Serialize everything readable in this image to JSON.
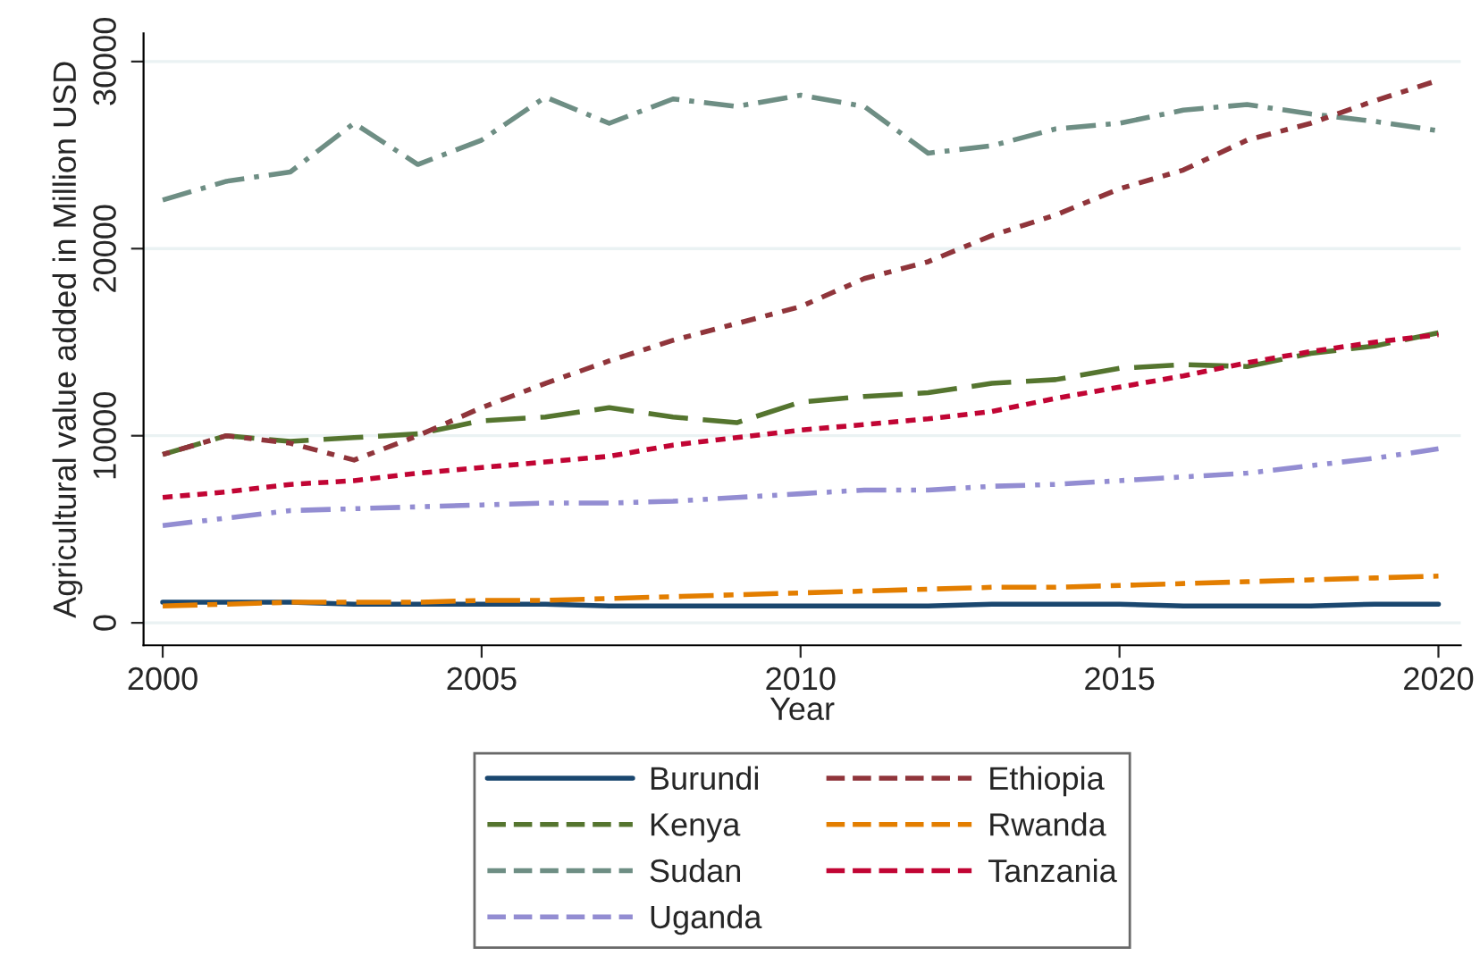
{
  "chart_data": {
    "type": "line",
    "xlabel": "Year",
    "ylabel": "Agricultural value added in Million USD",
    "x": [
      2000,
      2001,
      2002,
      2003,
      2004,
      2005,
      2006,
      2007,
      2008,
      2009,
      2010,
      2011,
      2012,
      2013,
      2014,
      2015,
      2016,
      2017,
      2018,
      2019,
      2020
    ],
    "xlim": [
      1999.7,
      2020.35
    ],
    "xticks": [
      2000,
      2005,
      2010,
      2015,
      2020
    ],
    "ylim": [
      -1200,
      31500
    ],
    "yticks": [
      0,
      10000,
      20000,
      30000
    ],
    "grid": "y",
    "legend": "bottom",
    "marker": "none",
    "series": [
      {
        "name": "Burundi",
        "color": "#1a476f",
        "line_style": "solid",
        "values": [
          1100,
          1100,
          1100,
          1000,
          1000,
          1000,
          1000,
          900,
          900,
          900,
          900,
          900,
          900,
          1000,
          1000,
          1000,
          900,
          900,
          900,
          1000,
          1000
        ]
      },
      {
        "name": "Kenya",
        "color": "#55752f",
        "line_style": "longdash",
        "values": [
          9000,
          10000,
          9700,
          9900,
          10100,
          10800,
          11000,
          11500,
          11000,
          10700,
          11800,
          12100,
          12300,
          12800,
          13000,
          13600,
          13800,
          13700,
          14400,
          14800,
          15500
        ]
      },
      {
        "name": "Sudan",
        "color": "#6e8e84",
        "line_style": "dashdot",
        "values": [
          22600,
          23600,
          24100,
          26700,
          24500,
          25800,
          28100,
          26700,
          28000,
          27600,
          28200,
          27600,
          25100,
          25500,
          26400,
          26700,
          27400,
          27700,
          27200,
          26800,
          26300
        ]
      },
      {
        "name": "Uganda",
        "color": "#938dd2",
        "line_style": "dashdotdot",
        "values": [
          5200,
          5600,
          6000,
          6100,
          6200,
          6300,
          6400,
          6400,
          6500,
          6700,
          6900,
          7100,
          7100,
          7300,
          7400,
          7600,
          7800,
          8000,
          8400,
          8800,
          9300
        ]
      },
      {
        "name": "Ethiopia",
        "color": "#90353b",
        "line_style": "dotdash",
        "values": [
          9000,
          10000,
          9600,
          8700,
          10000,
          11500,
          12800,
          14000,
          15100,
          16000,
          16900,
          18400,
          19300,
          20700,
          21800,
          23200,
          24200,
          25800,
          26700,
          27900,
          29000
        ]
      },
      {
        "name": "Rwanda",
        "color": "#e37e00",
        "line_style": "longdashdot",
        "values": [
          900,
          1000,
          1100,
          1100,
          1100,
          1200,
          1200,
          1300,
          1400,
          1500,
          1600,
          1700,
          1800,
          1900,
          1900,
          2000,
          2100,
          2200,
          2300,
          2400,
          2500
        ]
      },
      {
        "name": "Tanzania",
        "color": "#c10534",
        "line_style": "dotted",
        "values": [
          6700,
          7000,
          7400,
          7600,
          8000,
          8300,
          8600,
          8900,
          9500,
          9900,
          10300,
          10600,
          10900,
          11300,
          12000,
          12600,
          13200,
          13900,
          14500,
          15000,
          15400
        ]
      }
    ]
  }
}
